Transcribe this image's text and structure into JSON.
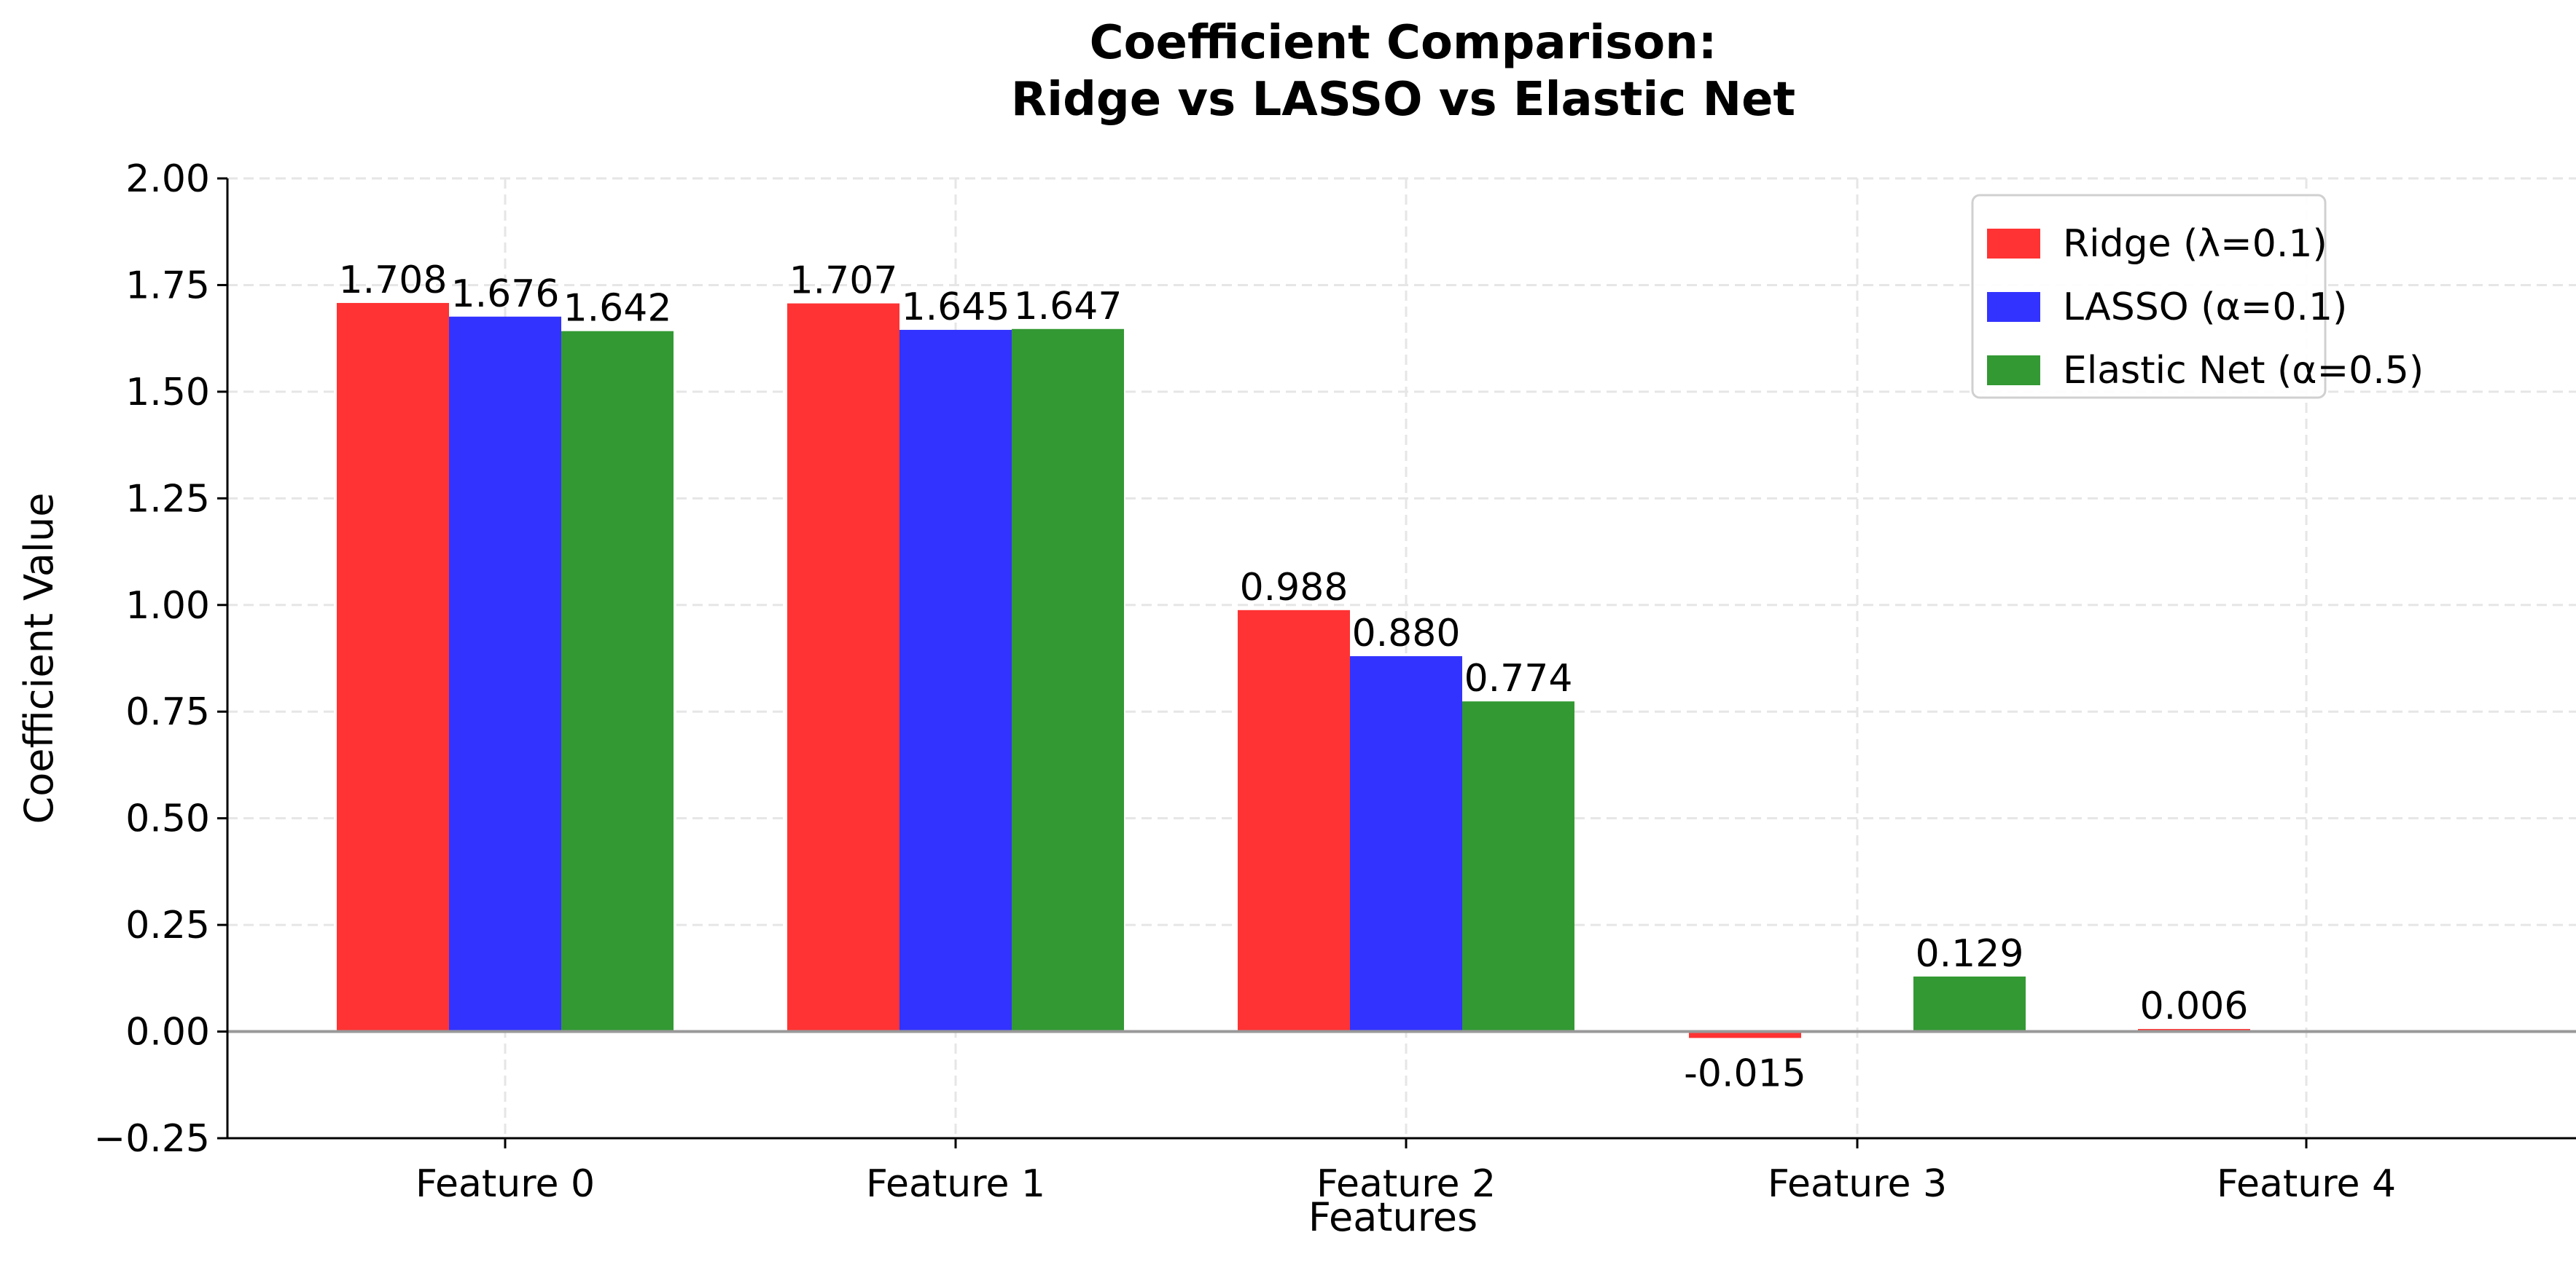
{
  "chart_data": {
    "type": "bar",
    "title": "Coefficient Comparison:\nRidge vs LASSO vs Elastic Net",
    "title_lines": [
      "Coefficient Comparison:",
      "Ridge vs LASSO vs Elastic Net"
    ],
    "xlabel": "Features",
    "ylabel": "Coefficient Value",
    "categories": [
      "Feature 0",
      "Feature 1",
      "Feature 2",
      "Feature 3",
      "Feature 4"
    ],
    "ylim": [
      -0.25,
      2.0
    ],
    "yticks": [
      -0.25,
      0.0,
      0.25,
      0.5,
      0.75,
      1.0,
      1.25,
      1.5,
      1.75,
      2.0
    ],
    "ytick_labels": [
      "−0.25",
      "0.00",
      "0.25",
      "0.50",
      "0.75",
      "1.00",
      "1.25",
      "1.50",
      "1.75",
      "2.00"
    ],
    "grid": true,
    "legend_position": "upper right",
    "series": [
      {
        "name": "Ridge (λ=0.1)",
        "color": "#ff3333",
        "values": [
          1.708,
          1.707,
          0.988,
          -0.015,
          0.006
        ],
        "labels": [
          "1.708",
          "1.707",
          "0.988",
          "-0.015",
          "0.006"
        ]
      },
      {
        "name": "LASSO (α=0.1)",
        "color": "#3333ff",
        "values": [
          1.676,
          1.645,
          0.88,
          0.0,
          0.0
        ],
        "labels": [
          "1.676",
          "1.645",
          "0.880",
          "",
          ""
        ]
      },
      {
        "name": "Elastic Net (α=0.5)",
        "color": "#339933",
        "values": [
          1.642,
          1.647,
          0.774,
          0.129,
          0.0
        ],
        "labels": [
          "1.642",
          "1.647",
          "0.774",
          "0.129",
          ""
        ]
      }
    ]
  },
  "colors": {
    "grid": "#e6e6e6",
    "zero_line": "#999999",
    "axis": "#000000",
    "legend_border": "#d0d0d0"
  }
}
